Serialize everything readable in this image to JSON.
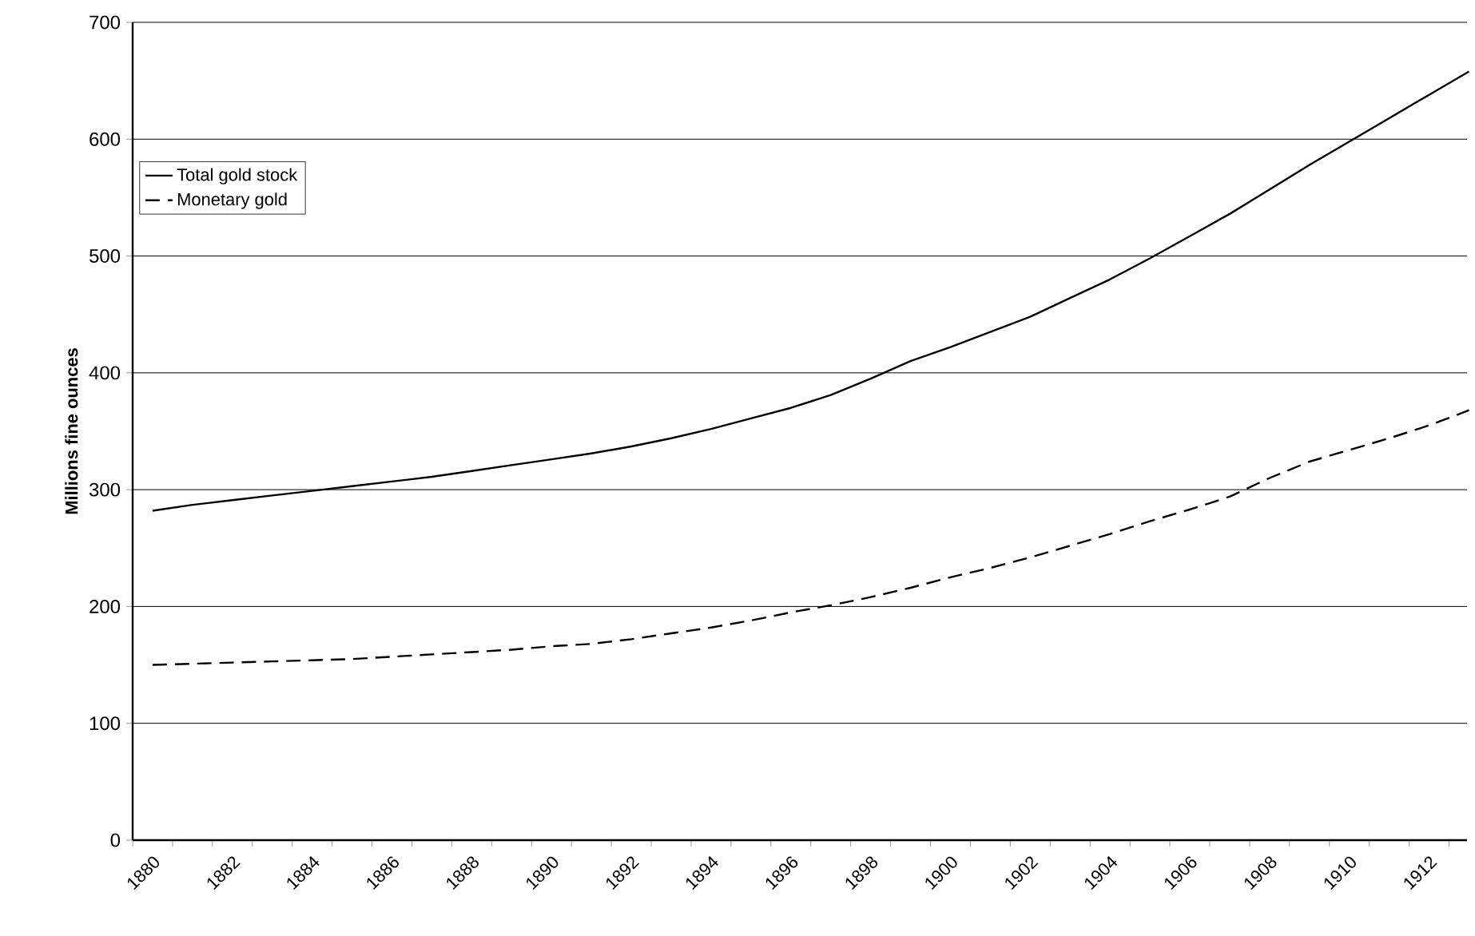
{
  "chart_data": {
    "type": "line",
    "ylabel": "Millions fine ounces",
    "categories": [
      "1880",
      null,
      "1882",
      null,
      "1884",
      null,
      "1886",
      null,
      "1888",
      null,
      "1890",
      null,
      "1892",
      null,
      "1894",
      null,
      "1896",
      null,
      "1898",
      null,
      "1900",
      null,
      "1902",
      null,
      "1904",
      null,
      "1906",
      null,
      "1908",
      null,
      "1910",
      null,
      "1912",
      null
    ],
    "series": [
      {
        "name": "Total gold stock",
        "color": "#000000",
        "line_style": "solid",
        "values": [
          282,
          287,
          291,
          295,
          299,
          303,
          307,
          311,
          316,
          321,
          326,
          331,
          337,
          344,
          352,
          361,
          370,
          381,
          395,
          410,
          422,
          435,
          448,
          464,
          480,
          498,
          517,
          536,
          557,
          578,
          598,
          618,
          638,
          658
        ]
      },
      {
        "name": "Monetary gold",
        "color": "#000000",
        "line_style": "dashed",
        "values": [
          150,
          151,
          152,
          153,
          154,
          155,
          157,
          159,
          161,
          163,
          166,
          168,
          172,
          177,
          182,
          188,
          195,
          201,
          208,
          216,
          225,
          233,
          242,
          252,
          262,
          273,
          283,
          294,
          310,
          324,
          334,
          344,
          355,
          368
        ]
      }
    ],
    "ylim": [
      0,
      700
    ],
    "yticks": [
      0,
      100,
      200,
      300,
      400,
      500,
      600,
      700
    ],
    "grid": "y",
    "legend": "top left",
    "marker": "none"
  }
}
